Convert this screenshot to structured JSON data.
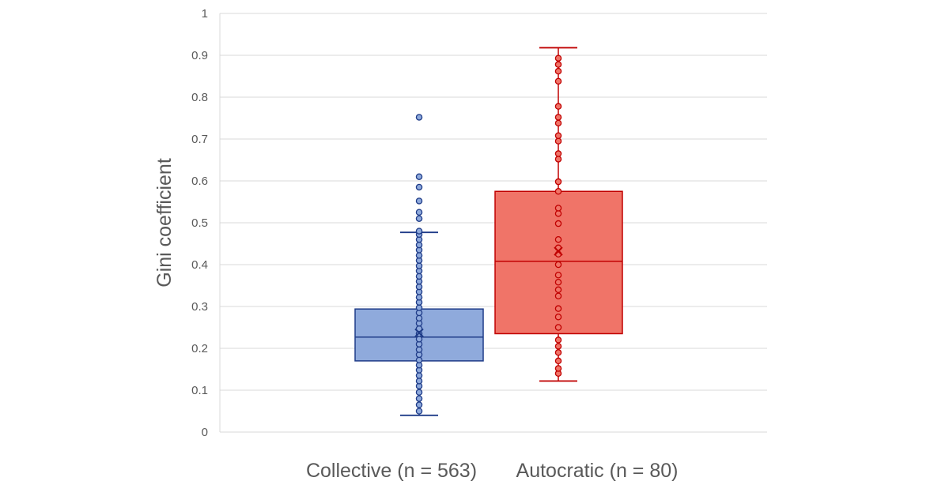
{
  "chart_data": {
    "type": "box",
    "ylabel": "Gini coefficient",
    "ylim": [
      0,
      1
    ],
    "yticks": [
      "0",
      "0.1",
      "0.2",
      "0.3",
      "0.4",
      "0.5",
      "0.6",
      "0.7",
      "0.8",
      "0.9",
      "1"
    ],
    "grid": true,
    "categories": [
      "Collective (n = 563)",
      "Autocratic (n = 80)"
    ],
    "series": [
      {
        "color": "#8FAADC",
        "stroke": "#1F3C88",
        "whisker_low": 0.04,
        "q1": 0.17,
        "median": 0.227,
        "q3": 0.294,
        "whisker_high": 0.477,
        "mean": 0.237,
        "points": [
          0.05,
          0.065,
          0.08,
          0.095,
          0.11,
          0.122,
          0.135,
          0.148,
          0.16,
          0.172,
          0.185,
          0.197,
          0.21,
          0.222,
          0.235,
          0.247,
          0.26,
          0.272,
          0.285,
          0.297,
          0.31,
          0.322,
          0.335,
          0.347,
          0.36,
          0.372,
          0.385,
          0.397,
          0.41,
          0.422,
          0.435,
          0.447,
          0.46,
          0.472,
          0.48,
          0.51,
          0.525,
          0.552,
          0.585,
          0.61,
          0.752
        ]
      },
      {
        "color": "#F07468",
        "stroke": "#C00000",
        "whisker_low": 0.122,
        "q1": 0.235,
        "median": 0.408,
        "q3": 0.575,
        "whisker_high": 0.918,
        "mean": 0.432,
        "points": [
          0.14,
          0.152,
          0.17,
          0.19,
          0.205,
          0.22,
          0.25,
          0.275,
          0.295,
          0.325,
          0.34,
          0.358,
          0.375,
          0.4,
          0.425,
          0.44,
          0.46,
          0.498,
          0.522,
          0.535,
          0.575,
          0.598,
          0.652,
          0.665,
          0.695,
          0.708,
          0.738,
          0.752,
          0.778,
          0.838,
          0.862,
          0.878,
          0.893
        ]
      }
    ]
  }
}
